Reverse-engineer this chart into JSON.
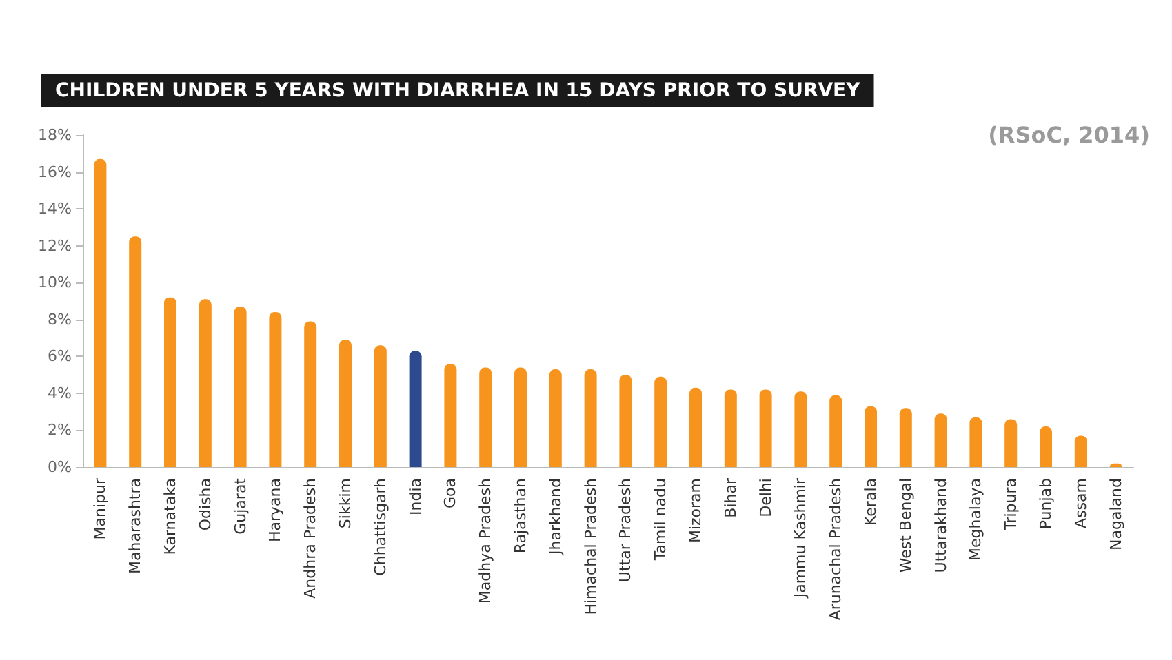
{
  "chart_data": {
    "type": "bar",
    "title": "CHILDREN UNDER 5 YEARS WITH DIARRHEA IN 15 DAYS PRIOR TO SURVEY",
    "annotations": [
      "(RSoC, 2014)"
    ],
    "categories": [
      "Manipur",
      "Maharashtra",
      "Karnataka",
      "Odisha",
      "Gujarat",
      "Haryana",
      "Andhra Pradesh",
      "Sikkim",
      "Chhattisgarh",
      "India",
      "Goa",
      "Madhya Pradesh",
      "Rajasthan",
      "Jharkhand",
      "Himachal Pradesh",
      "Uttar Pradesh",
      "Tamil nadu",
      "Mizoram",
      "Bihar",
      "Delhi",
      "Jammu Kashmir",
      "Arunachal Pradesh",
      "Kerala",
      "West Bengal",
      "Uttarakhand",
      "Meghalaya",
      "Tripura",
      "Punjab",
      "Assam",
      "Nagaland"
    ],
    "values": [
      16.7,
      12.5,
      9.2,
      9.1,
      8.7,
      8.4,
      7.9,
      6.9,
      6.6,
      6.3,
      5.6,
      5.4,
      5.4,
      5.3,
      5.3,
      5.0,
      4.9,
      4.3,
      4.2,
      4.2,
      4.1,
      3.9,
      3.3,
      3.2,
      2.9,
      2.7,
      2.6,
      2.2,
      1.7,
      0.2
    ],
    "colors": [
      "#f7941d",
      "#f7941d",
      "#f7941d",
      "#f7941d",
      "#f7941d",
      "#f7941d",
      "#f7941d",
      "#f7941d",
      "#f7941d",
      "#2e4a8f",
      "#f7941d",
      "#f7941d",
      "#f7941d",
      "#f7941d",
      "#f7941d",
      "#f7941d",
      "#f7941d",
      "#f7941d",
      "#f7941d",
      "#f7941d",
      "#f7941d",
      "#f7941d",
      "#f7941d",
      "#f7941d",
      "#f7941d",
      "#f7941d",
      "#f7941d",
      "#f7941d",
      "#f7941d",
      "#f7941d"
    ],
    "ylim": [
      0,
      18
    ],
    "yticks": [
      {
        "value": 0,
        "label": "0%"
      },
      {
        "value": 2,
        "label": "2%"
      },
      {
        "value": 4,
        "label": "4%"
      },
      {
        "value": 6,
        "label": "6%"
      },
      {
        "value": 8,
        "label": "8%"
      },
      {
        "value": 10,
        "label": "10%"
      },
      {
        "value": 12,
        "label": "12%"
      },
      {
        "value": 14,
        "label": "14%"
      },
      {
        "value": 16,
        "label": "16%"
      },
      {
        "value": 18,
        "label": "18%"
      }
    ],
    "grid": false
  }
}
